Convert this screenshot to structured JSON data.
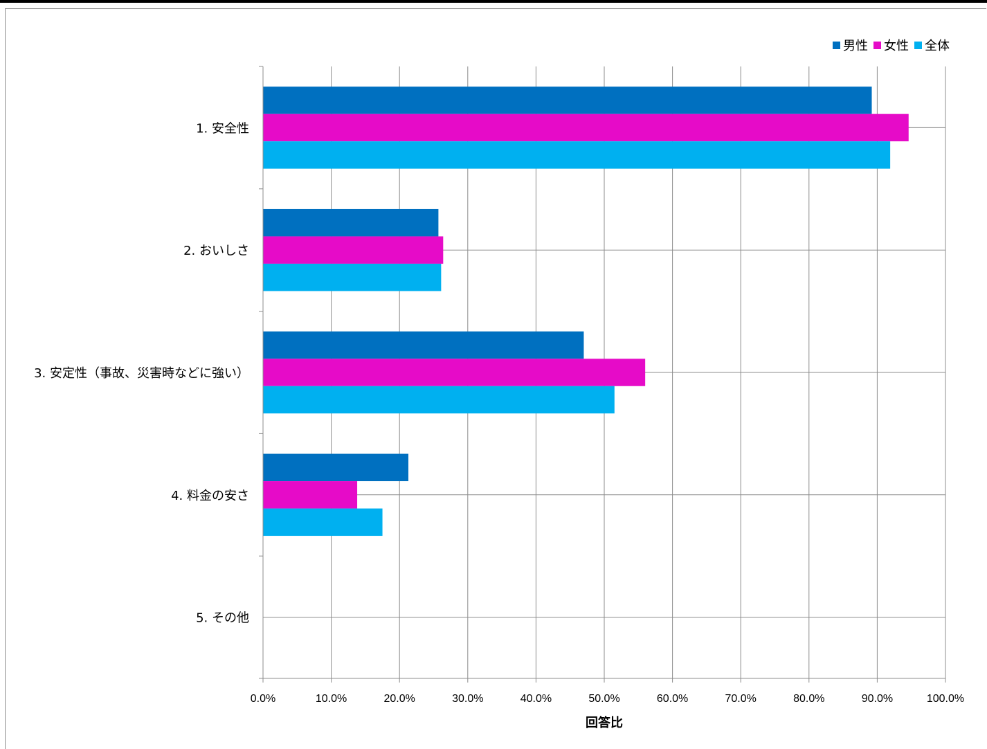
{
  "chart_data": {
    "type": "bar",
    "orientation": "horizontal",
    "categories": [
      "1. 安全性",
      "2. おいしさ",
      "3. 安定性（事故、災害時などに強い）",
      "4. 料金の安さ",
      "5. その他"
    ],
    "series": [
      {
        "name": "男性",
        "color": "#0070c0",
        "values": [
          89.2,
          25.7,
          47.0,
          21.3,
          0.0
        ]
      },
      {
        "name": "女性",
        "color": "#e60bc8",
        "values": [
          94.6,
          26.4,
          56.0,
          13.8,
          0.0
        ]
      },
      {
        "name": "全体",
        "color": "#00b0f0",
        "values": [
          91.9,
          26.1,
          51.5,
          17.5,
          0.0
        ]
      }
    ],
    "xlim": [
      0,
      100
    ],
    "xticks": [
      "0.0%",
      "10.0%",
      "20.0%",
      "30.0%",
      "40.0%",
      "50.0%",
      "60.0%",
      "70.0%",
      "80.0%",
      "90.0%",
      "100.0%"
    ],
    "xlabel": "回答比",
    "ylabel": "",
    "title": "",
    "grid": true,
    "legend_position": "top-right"
  }
}
